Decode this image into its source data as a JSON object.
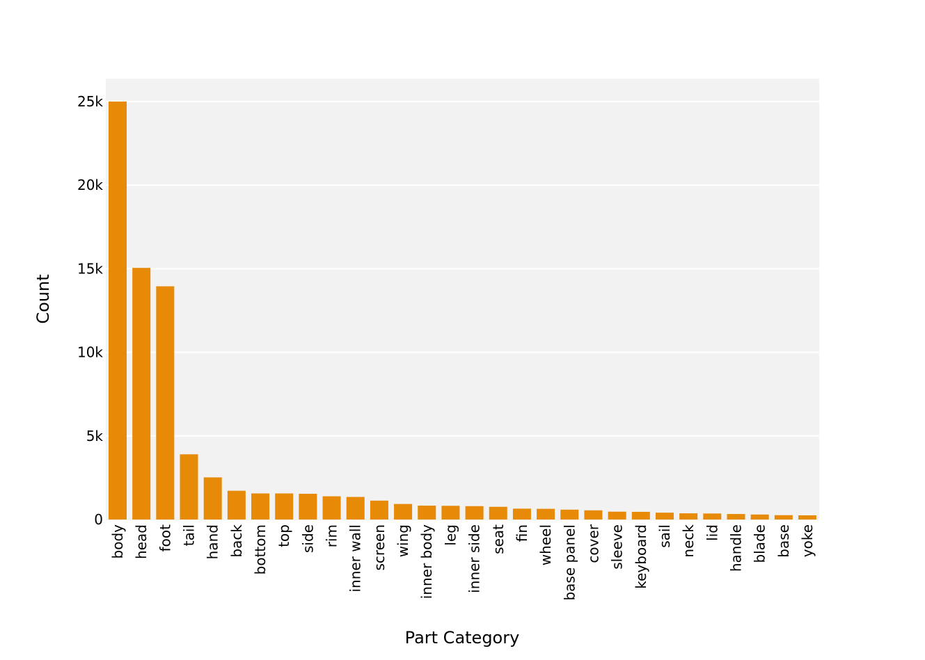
{
  "chart_data": {
    "type": "bar",
    "xlabel": "Part Category",
    "ylabel": "Count",
    "ylim": [
      0,
      26500
    ],
    "yticks": [
      {
        "value": 0,
        "label": "0"
      },
      {
        "value": 5000,
        "label": "5k"
      },
      {
        "value": 10000,
        "label": "10k"
      },
      {
        "value": 15000,
        "label": "15k"
      },
      {
        "value": 20000,
        "label": "20k"
      },
      {
        "value": 25000,
        "label": "25k"
      }
    ],
    "grid": true,
    "categories": [
      "body",
      "head",
      "foot",
      "tail",
      "hand",
      "back",
      "bottom",
      "top",
      "side",
      "rim",
      "inner wall",
      "screen",
      "wing",
      "inner body",
      "leg",
      "inner side",
      "seat",
      "fin",
      "wheel",
      "base panel",
      "cover",
      "sleeve",
      "keyboard",
      "sail",
      "neck",
      "lid",
      "handle",
      "blade",
      "base",
      "yoke"
    ],
    "values": [
      25000,
      15050,
      13950,
      3900,
      2520,
      1720,
      1560,
      1560,
      1540,
      1390,
      1350,
      1130,
      930,
      830,
      820,
      800,
      760,
      650,
      640,
      590,
      550,
      470,
      460,
      410,
      370,
      360,
      330,
      300,
      260,
      250
    ],
    "colors": {
      "bar": "#e68a07",
      "plot_bg": "#f2f2f2",
      "grid": "#ffffff"
    }
  }
}
